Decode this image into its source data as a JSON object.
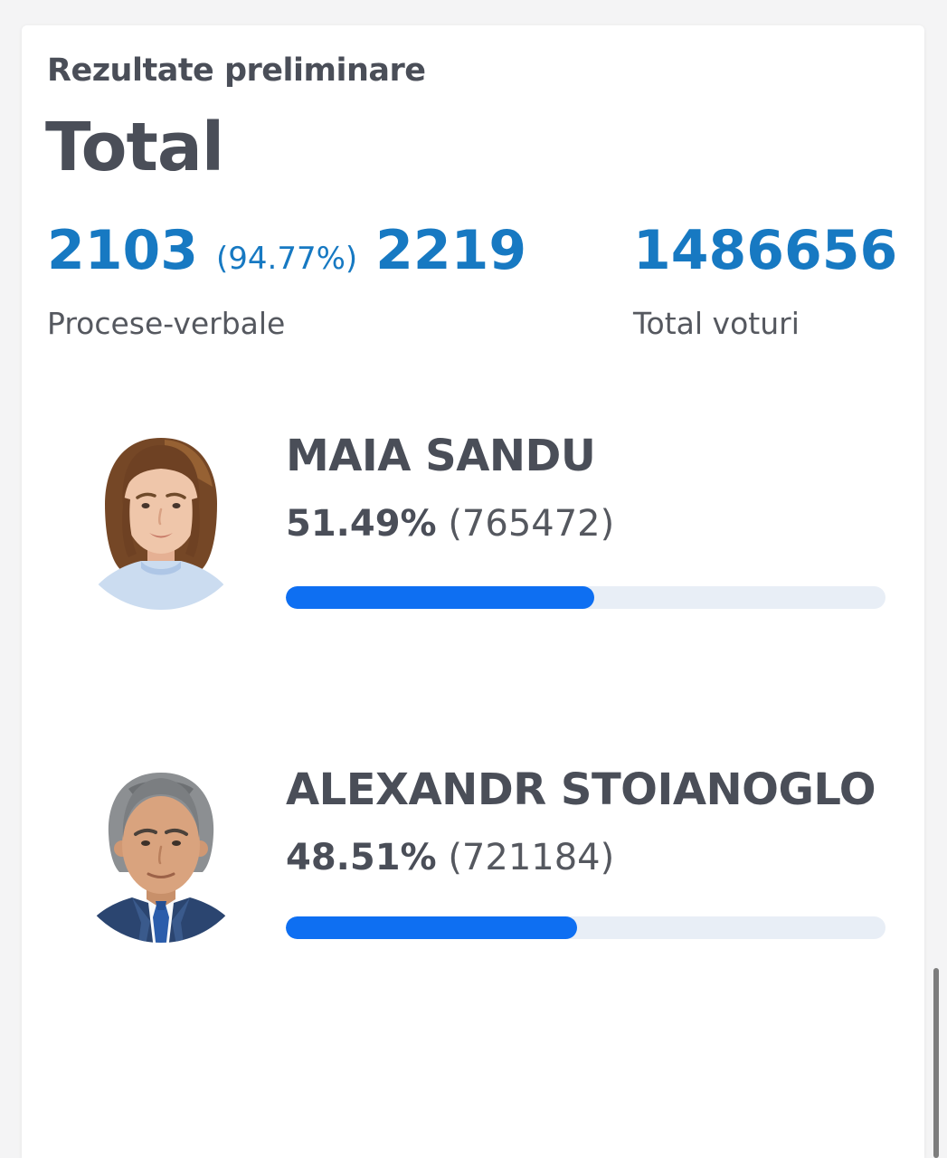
{
  "header": {
    "subtitle": "Rezultate preliminare",
    "title": "Total"
  },
  "stats": {
    "protocols": {
      "counted": "2103",
      "percent": "(94.77%)",
      "total": "2219",
      "label": "Procese-verbale"
    },
    "votes": {
      "value": "1486656",
      "label": "Total voturi"
    }
  },
  "candidates": [
    {
      "name": "MAIA SANDU",
      "percent": "51.49%",
      "votes": "(765472)",
      "bar_percent": 51.49,
      "photo_icon": "maia-sandu-portrait"
    },
    {
      "name": "ALEXANDR STOIANOGLO",
      "percent": "48.51%",
      "votes": "(721184)",
      "bar_percent": 48.51,
      "photo_icon": "alexandr-stoianoglo-portrait"
    }
  ],
  "colors": {
    "page_background": "#f4f4f5",
    "card_background": "#ffffff",
    "accent_blue": "#1779c2",
    "bar_fill": "#0e6ff2",
    "bar_track": "#e8eef6",
    "text_dark": "#4a4e58",
    "text_gray": "#55585f",
    "scrollbar": "#7d7d7d"
  }
}
